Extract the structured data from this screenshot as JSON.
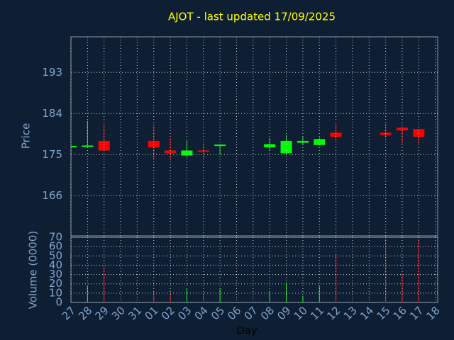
{
  "chart_data": [
    {
      "type": "candlestick",
      "title": "AJOT - last updated 17/09/2025",
      "ylabel": "Price",
      "categories": [
        "27",
        "28",
        "29",
        "30",
        "31",
        "01",
        "02",
        "03",
        "04",
        "05",
        "06",
        "07",
        "08",
        "09",
        "10",
        "11",
        "12",
        "13",
        "14",
        "15",
        "16",
        "17",
        "18"
      ],
      "open": [
        176.9,
        176.9,
        178.0,
        null,
        null,
        178.0,
        175.9,
        174.8,
        175.9,
        176.9,
        null,
        null,
        176.6,
        175.3,
        177.6,
        177.1,
        179.8,
        null,
        null,
        179.8,
        180.9,
        180.6,
        null
      ],
      "high": [
        176.9,
        182.4,
        181.5,
        null,
        null,
        181.2,
        178.6,
        178.1,
        177.3,
        177.2,
        null,
        null,
        178.6,
        179.3,
        178.9,
        178.7,
        181.8,
        null,
        null,
        181.8,
        180.9,
        180.6,
        null
      ],
      "low": [
        176.9,
        176.8,
        175.9,
        null,
        null,
        173.9,
        173.9,
        174.4,
        174.1,
        175.0,
        null,
        null,
        175.9,
        175.0,
        177.1,
        177.1,
        178.0,
        null,
        null,
        178.7,
        177.3,
        177.3,
        null
      ],
      "close": [
        176.9,
        177.0,
        175.9,
        null,
        null,
        176.6,
        175.3,
        175.9,
        175.6,
        177.2,
        null,
        null,
        177.3,
        178.0,
        178.0,
        178.4,
        178.9,
        null,
        null,
        179.3,
        180.3,
        178.9,
        null
      ],
      "ylim": [
        157.2,
        200.8
      ],
      "yticks": [
        166,
        175,
        184,
        193
      ],
      "grid": true,
      "up_color": "#00ff00",
      "down_color": "#ff0000"
    },
    {
      "type": "volume",
      "ylabel": "Volume (0000)",
      "xlabel": "Day",
      "categories": [
        "27",
        "28",
        "29",
        "30",
        "31",
        "01",
        "02",
        "03",
        "04",
        "05",
        "06",
        "07",
        "08",
        "09",
        "10",
        "11",
        "12",
        "13",
        "14",
        "15",
        "16",
        "17",
        "18"
      ],
      "values": [
        null,
        17.5,
        38,
        null,
        null,
        11.4,
        10,
        14.5,
        10.6,
        15,
        null,
        null,
        11.4,
        20,
        7,
        18,
        51,
        null,
        null,
        68.5,
        30,
        68,
        null
      ],
      "ylim": [
        0,
        70
      ],
      "yticks": [
        0,
        10,
        20,
        30,
        40,
        50,
        60,
        70
      ],
      "grid": true
    }
  ]
}
